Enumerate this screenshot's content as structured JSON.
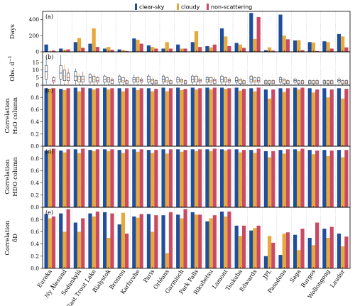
{
  "chart_data": {
    "type": "bar",
    "legend": {
      "placement": "top-center",
      "entries": [
        {
          "name": "clear-sky",
          "color": "#1f4e9c"
        },
        {
          "name": "cloudy",
          "color": "#e8a93b"
        },
        {
          "name": "non-scattering",
          "color": "#c84a64"
        }
      ]
    },
    "categories": [
      "Eureka",
      "Ny Ålesund",
      "Sodankylä",
      "East Trout Lake",
      "Bialystok",
      "Bremen",
      "Karlsruhe",
      "Paris",
      "Orléans",
      "Garmisch",
      "Park Falls",
      "Rikubetsu",
      "Lamont",
      "Tsukuba",
      "Edwards",
      "JPL",
      "Pasadena",
      "Saga",
      "Burgos",
      "Wollongong",
      "Lauder"
    ],
    "panels": [
      {
        "label": "(a)",
        "ylabel": [
          "Days"
        ],
        "ylim": [
          0,
          500
        ],
        "yticks": [
          0,
          200,
          400
        ],
        "type": "bar",
        "series": [
          {
            "name": "clear-sky",
            "values": [
              90,
              40,
              120,
              100,
              40,
              30,
              165,
              80,
              40,
              90,
              120,
              70,
              290,
              110,
              480,
              20,
              460,
              140,
              120,
              130,
              220
            ]
          },
          {
            "name": "cloudy",
            "values": [
              0,
              25,
              170,
              290,
              60,
              20,
              150,
              60,
              120,
              40,
              255,
              55,
              190,
              90,
              160,
              55,
              200,
              145,
              115,
              120,
              190
            ]
          },
          {
            "name": "non-scattering",
            "values": [
              15,
              30,
              50,
              60,
              25,
              10,
              100,
              40,
              40,
              40,
              60,
              90,
              70,
              50,
              430,
              15,
              155,
              20,
              10,
              40,
              55
            ]
          }
        ]
      },
      {
        "label": "(b)",
        "ylabel": [
          "Obs. d",
          "−1"
        ],
        "ylim": [
          0,
          22
        ],
        "yticks": [
          0,
          5,
          10,
          15
        ],
        "type": "box",
        "series": [
          {
            "name": "clear-sky",
            "boxes": [
              [
                0.5,
                4,
                9,
                13,
                19
              ],
              [
                0.5,
                4,
                8,
                13,
                20
              ],
              [
                0.5,
                3,
                6,
                9,
                11
              ],
              [
                0.5,
                2,
                5,
                7,
                8
              ],
              [
                0.5,
                2,
                4,
                6,
                7
              ],
              [
                0.5,
                2,
                4,
                6,
                7
              ],
              [
                0.5,
                2,
                4,
                5,
                7
              ],
              [
                0.5,
                2,
                4,
                6,
                7
              ],
              [
                0.5,
                2,
                4,
                6,
                7
              ],
              [
                0.5,
                2,
                4,
                5,
                6
              ],
              [
                0.5,
                2,
                4,
                6,
                7
              ],
              [
                0.5,
                2,
                4,
                5,
                6
              ],
              [
                0.5,
                2,
                4,
                6,
                7
              ],
              [
                0.5,
                2,
                3,
                5,
                6
              ],
              [
                0.5,
                2,
                4,
                6,
                7
              ],
              [
                0.5,
                1,
                2,
                3,
                4
              ],
              [
                0.5,
                2,
                4,
                5,
                6
              ],
              [
                0.5,
                2,
                3,
                4,
                5
              ],
              [
                0.5,
                1,
                2,
                3,
                4
              ],
              [
                0.5,
                1,
                2,
                3,
                4
              ],
              [
                0.5,
                2,
                3,
                4,
                5
              ]
            ]
          },
          {
            "name": "cloudy",
            "boxes": [
              [
                0,
                0,
                0,
                0,
                0
              ],
              [
                0.5,
                3,
                6,
                10,
                14
              ],
              [
                0.5,
                2,
                4,
                6,
                8
              ],
              [
                0.5,
                2,
                4,
                6,
                7
              ],
              [
                0.5,
                2,
                4,
                5,
                6
              ],
              [
                0.5,
                2,
                3,
                5,
                6
              ],
              [
                0.5,
                2,
                4,
                5,
                6
              ],
              [
                0.5,
                1,
                3,
                4,
                5
              ],
              [
                0.5,
                2,
                3,
                5,
                6
              ],
              [
                0.5,
                2,
                3,
                4,
                5
              ],
              [
                0.5,
                2,
                4,
                6,
                7
              ],
              [
                0.5,
                2,
                3,
                5,
                6
              ],
              [
                0.5,
                2,
                4,
                5,
                6
              ],
              [
                0.5,
                1,
                3,
                4,
                5
              ],
              [
                0.5,
                2,
                3,
                5,
                6
              ],
              [
                0.5,
                1,
                2,
                3,
                4
              ],
              [
                0.5,
                1,
                3,
                4,
                5
              ],
              [
                0.5,
                1,
                2,
                3,
                4
              ],
              [
                0.5,
                1,
                2,
                3,
                4
              ],
              [
                0.5,
                1,
                2,
                3,
                4
              ],
              [
                0.5,
                1,
                2,
                3,
                4
              ]
            ]
          },
          {
            "name": "non-scattering",
            "boxes": [
              [
                0.5,
                2,
                3,
                5,
                6
              ],
              [
                0.5,
                3,
                5,
                8,
                11
              ],
              [
                0.5,
                2,
                4,
                6,
                9
              ],
              [
                0.5,
                2,
                3,
                5,
                6
              ],
              [
                0.5,
                1,
                3,
                4,
                5
              ],
              [
                0.5,
                1,
                2,
                3,
                4
              ],
              [
                0.5,
                2,
                3,
                4,
                5
              ],
              [
                0.5,
                1,
                2,
                3,
                4
              ],
              [
                0.5,
                1,
                2,
                3,
                4
              ],
              [
                0.5,
                1,
                2,
                3,
                4
              ],
              [
                0.5,
                2,
                3,
                4,
                5
              ],
              [
                0.5,
                1,
                3,
                4,
                5
              ],
              [
                0.5,
                2,
                3,
                4,
                5
              ],
              [
                0.5,
                1,
                2,
                3,
                4
              ],
              [
                0.5,
                2,
                3,
                5,
                6
              ],
              [
                0.5,
                1,
                2,
                3,
                4
              ],
              [
                0.5,
                1,
                2,
                3,
                4
              ],
              [
                0.5,
                1,
                2,
                3,
                4
              ],
              [
                0.5,
                1,
                2,
                3,
                4
              ],
              [
                0.5,
                1,
                2,
                3,
                4
              ],
              [
                0.5,
                1,
                2,
                3,
                4
              ]
            ]
          }
        ]
      },
      {
        "label": "(c)",
        "ylabel": [
          "Correlation",
          "H₂O column"
        ],
        "ylim": [
          0,
          1.0
        ],
        "yticks": [
          0.0,
          0.2,
          0.4,
          0.6,
          0.8
        ],
        "type": "bar",
        "series": [
          {
            "name": "clear-sky",
            "values": [
              0.95,
              0.94,
              0.96,
              0.95,
              0.96,
              0.95,
              0.96,
              0.95,
              0.96,
              0.96,
              0.96,
              0.96,
              0.96,
              0.96,
              0.95,
              0.93,
              0.95,
              0.96,
              0.95,
              0.95,
              0.95
            ]
          },
          {
            "name": "cloudy",
            "values": [
              0.94,
              0.92,
              0.9,
              0.93,
              0.93,
              0.9,
              0.92,
              0.9,
              0.9,
              0.92,
              0.93,
              0.93,
              0.94,
              0.91,
              0.9,
              0.78,
              0.89,
              0.93,
              0.88,
              0.8,
              0.78
            ]
          },
          {
            "name": "non-scattering",
            "values": [
              0.95,
              0.95,
              0.96,
              0.95,
              0.95,
              0.95,
              0.95,
              0.94,
              0.95,
              0.94,
              0.95,
              0.96,
              0.95,
              0.94,
              0.96,
              0.93,
              0.95,
              0.96,
              0.93,
              0.93,
              0.94
            ]
          }
        ]
      },
      {
        "label": "(d)",
        "ylabel": [
          "Correlation",
          "HDO column"
        ],
        "ylim": [
          0,
          1.0
        ],
        "yticks": [
          0.0,
          0.2,
          0.4,
          0.6,
          0.8
        ],
        "type": "bar",
        "series": [
          {
            "name": "clear-sky",
            "values": [
              0.93,
              0.93,
              0.95,
              0.94,
              0.95,
              0.94,
              0.95,
              0.94,
              0.95,
              0.95,
              0.95,
              0.95,
              0.95,
              0.95,
              0.94,
              0.92,
              0.94,
              0.95,
              0.94,
              0.94,
              0.94
            ]
          },
          {
            "name": "cloudy",
            "values": [
              0.93,
              0.9,
              0.89,
              0.92,
              0.92,
              0.89,
              0.91,
              0.89,
              0.88,
              0.91,
              0.92,
              0.92,
              0.93,
              0.9,
              0.89,
              0.82,
              0.88,
              0.92,
              0.87,
              0.84,
              0.82
            ]
          },
          {
            "name": "non-scattering",
            "values": [
              0.96,
              0.95,
              0.96,
              0.95,
              0.95,
              0.95,
              0.95,
              0.94,
              0.95,
              0.94,
              0.95,
              0.96,
              0.95,
              0.94,
              0.96,
              0.92,
              0.95,
              0.96,
              0.93,
              0.93,
              0.94
            ]
          }
        ]
      },
      {
        "label": "(e)",
        "ylabel": [
          "Correlation",
          "δD"
        ],
        "ylim": [
          0,
          1.0
        ],
        "yticks": [
          0.0,
          0.2,
          0.4,
          0.6,
          0.8
        ],
        "type": "bar",
        "series": [
          {
            "name": "clear-sky",
            "values": [
              0.89,
              0.9,
              0.75,
              0.9,
              0.92,
              0.72,
              0.85,
              0.89,
              0.87,
              0.88,
              0.92,
              0.77,
              0.93,
              0.7,
              0.62,
              0.2,
              0.22,
              0.55,
              0.5,
              0.65,
              0.57
            ]
          },
          {
            "name": "cloudy",
            "values": [
              0.82,
              0.6,
              0.6,
              0.85,
              0.5,
              0.91,
              0.83,
              0.6,
              0.25,
              0.82,
              0.88,
              0.82,
              0.85,
              0.53,
              0.66,
              0.53,
              0.57,
              0.3,
              0.38,
              0.5,
              0.36
            ]
          },
          {
            "name": "non-scattering",
            "values": [
              0.85,
              0.97,
              0.82,
              0.93,
              0.9,
              0.57,
              0.89,
              0.87,
              0.92,
              0.97,
              0.88,
              0.87,
              0.93,
              0.7,
              0.7,
              0.42,
              0.59,
              0.65,
              0.75,
              0.68,
              0.52
            ]
          }
        ]
      }
    ]
  }
}
